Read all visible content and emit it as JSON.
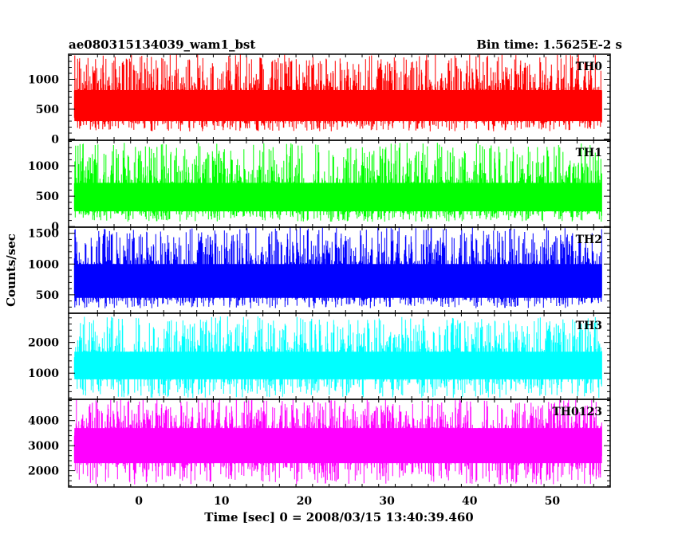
{
  "chart_data": {
    "type": "line",
    "title_left": "ae080315134039_wam1_bst",
    "title_right": "Bin time: 1.5625E-2 s",
    "xlabel": "Time [sec] 0 = 2008/03/15 13:40:39.460",
    "ylabel": "Counts/sec",
    "xlim": [
      -8.5,
      57
    ],
    "x_ticks": [
      0,
      10,
      20,
      30,
      40,
      50
    ],
    "x_range_data": [
      -7.8,
      56.0
    ],
    "grid": false,
    "panels": [
      {
        "name": "TH0",
        "color": "#ff0000",
        "ylim": [
          -20,
          1420
        ],
        "y_ticks": [
          0,
          500,
          1000
        ],
        "band": [
          300,
          820
        ],
        "spread": [
          130,
          1420
        ]
      },
      {
        "name": "TH1",
        "color": "#00ff00",
        "ylim": [
          -10,
          1420
        ],
        "y_ticks": [
          0,
          500,
          1000
        ],
        "band": [
          250,
          720
        ],
        "spread": [
          80,
          1380
        ]
      },
      {
        "name": "TH2",
        "color": "#0000ff",
        "ylim": [
          200,
          1600
        ],
        "y_ticks": [
          500,
          1000,
          1500
        ],
        "band": [
          450,
          1000
        ],
        "spread": [
          280,
          1600
        ]
      },
      {
        "name": "TH3",
        "color": "#00ffff",
        "ylim": [
          150,
          2950
        ],
        "y_ticks": [
          1000,
          2000
        ],
        "band": [
          800,
          1700
        ],
        "spread": [
          200,
          2850
        ]
      },
      {
        "name": "TH0123",
        "color": "#ff00ff",
        "ylim": [
          1350,
          4850
        ],
        "y_ticks": [
          2000,
          3000,
          4000
        ],
        "band": [
          2300,
          3700
        ],
        "spread": [
          1450,
          4850
        ]
      }
    ]
  }
}
